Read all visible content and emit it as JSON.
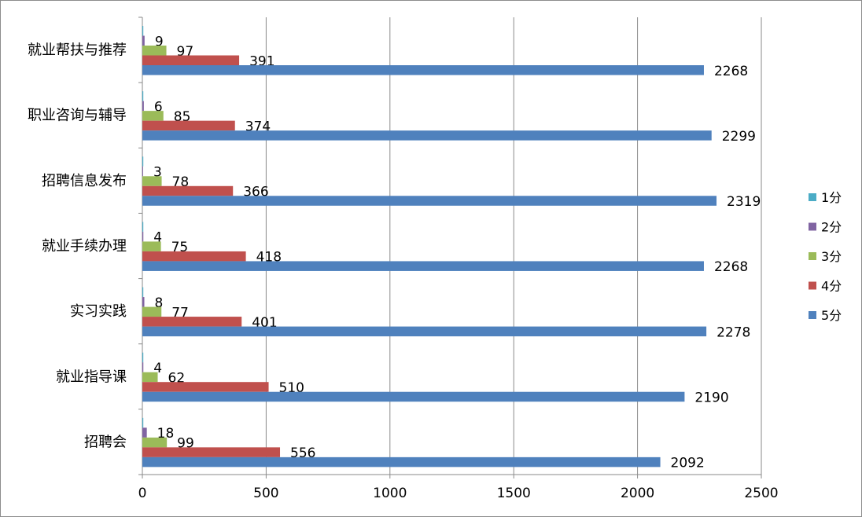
{
  "chart_data": {
    "type": "bar",
    "orientation": "horizontal",
    "categories": [
      "就业帮扶与推荐",
      "职业咨询与辅导",
      "招聘信息发布",
      "就业手续办理",
      "实习实践",
      "就业指导课",
      "招聘会"
    ],
    "series": [
      {
        "name": "1分",
        "color": "#4bacc6",
        "values": [
          0,
          0,
          0,
          0,
          0,
          0,
          0
        ]
      },
      {
        "name": "2分",
        "color": "#8064a2",
        "values": [
          9,
          6,
          3,
          4,
          8,
          4,
          18
        ]
      },
      {
        "name": "3分",
        "color": "#9bbb59",
        "values": [
          97,
          85,
          78,
          75,
          77,
          62,
          99
        ]
      },
      {
        "name": "4分",
        "color": "#c0504d",
        "values": [
          391,
          374,
          366,
          418,
          401,
          510,
          556
        ]
      },
      {
        "name": "5分",
        "color": "#4f81bd",
        "values": [
          2268,
          2299,
          2319,
          2268,
          2278,
          2190,
          2092
        ]
      }
    ],
    "data_labels_shown_for": [
      "2分",
      "3分",
      "4分",
      "5分"
    ],
    "xlim": [
      0,
      2500
    ],
    "xticks": [
      0,
      500,
      1000,
      1500,
      2000,
      2500
    ],
    "grid": "vertical",
    "legend": "right",
    "title": "",
    "xlabel": "",
    "ylabel": ""
  }
}
